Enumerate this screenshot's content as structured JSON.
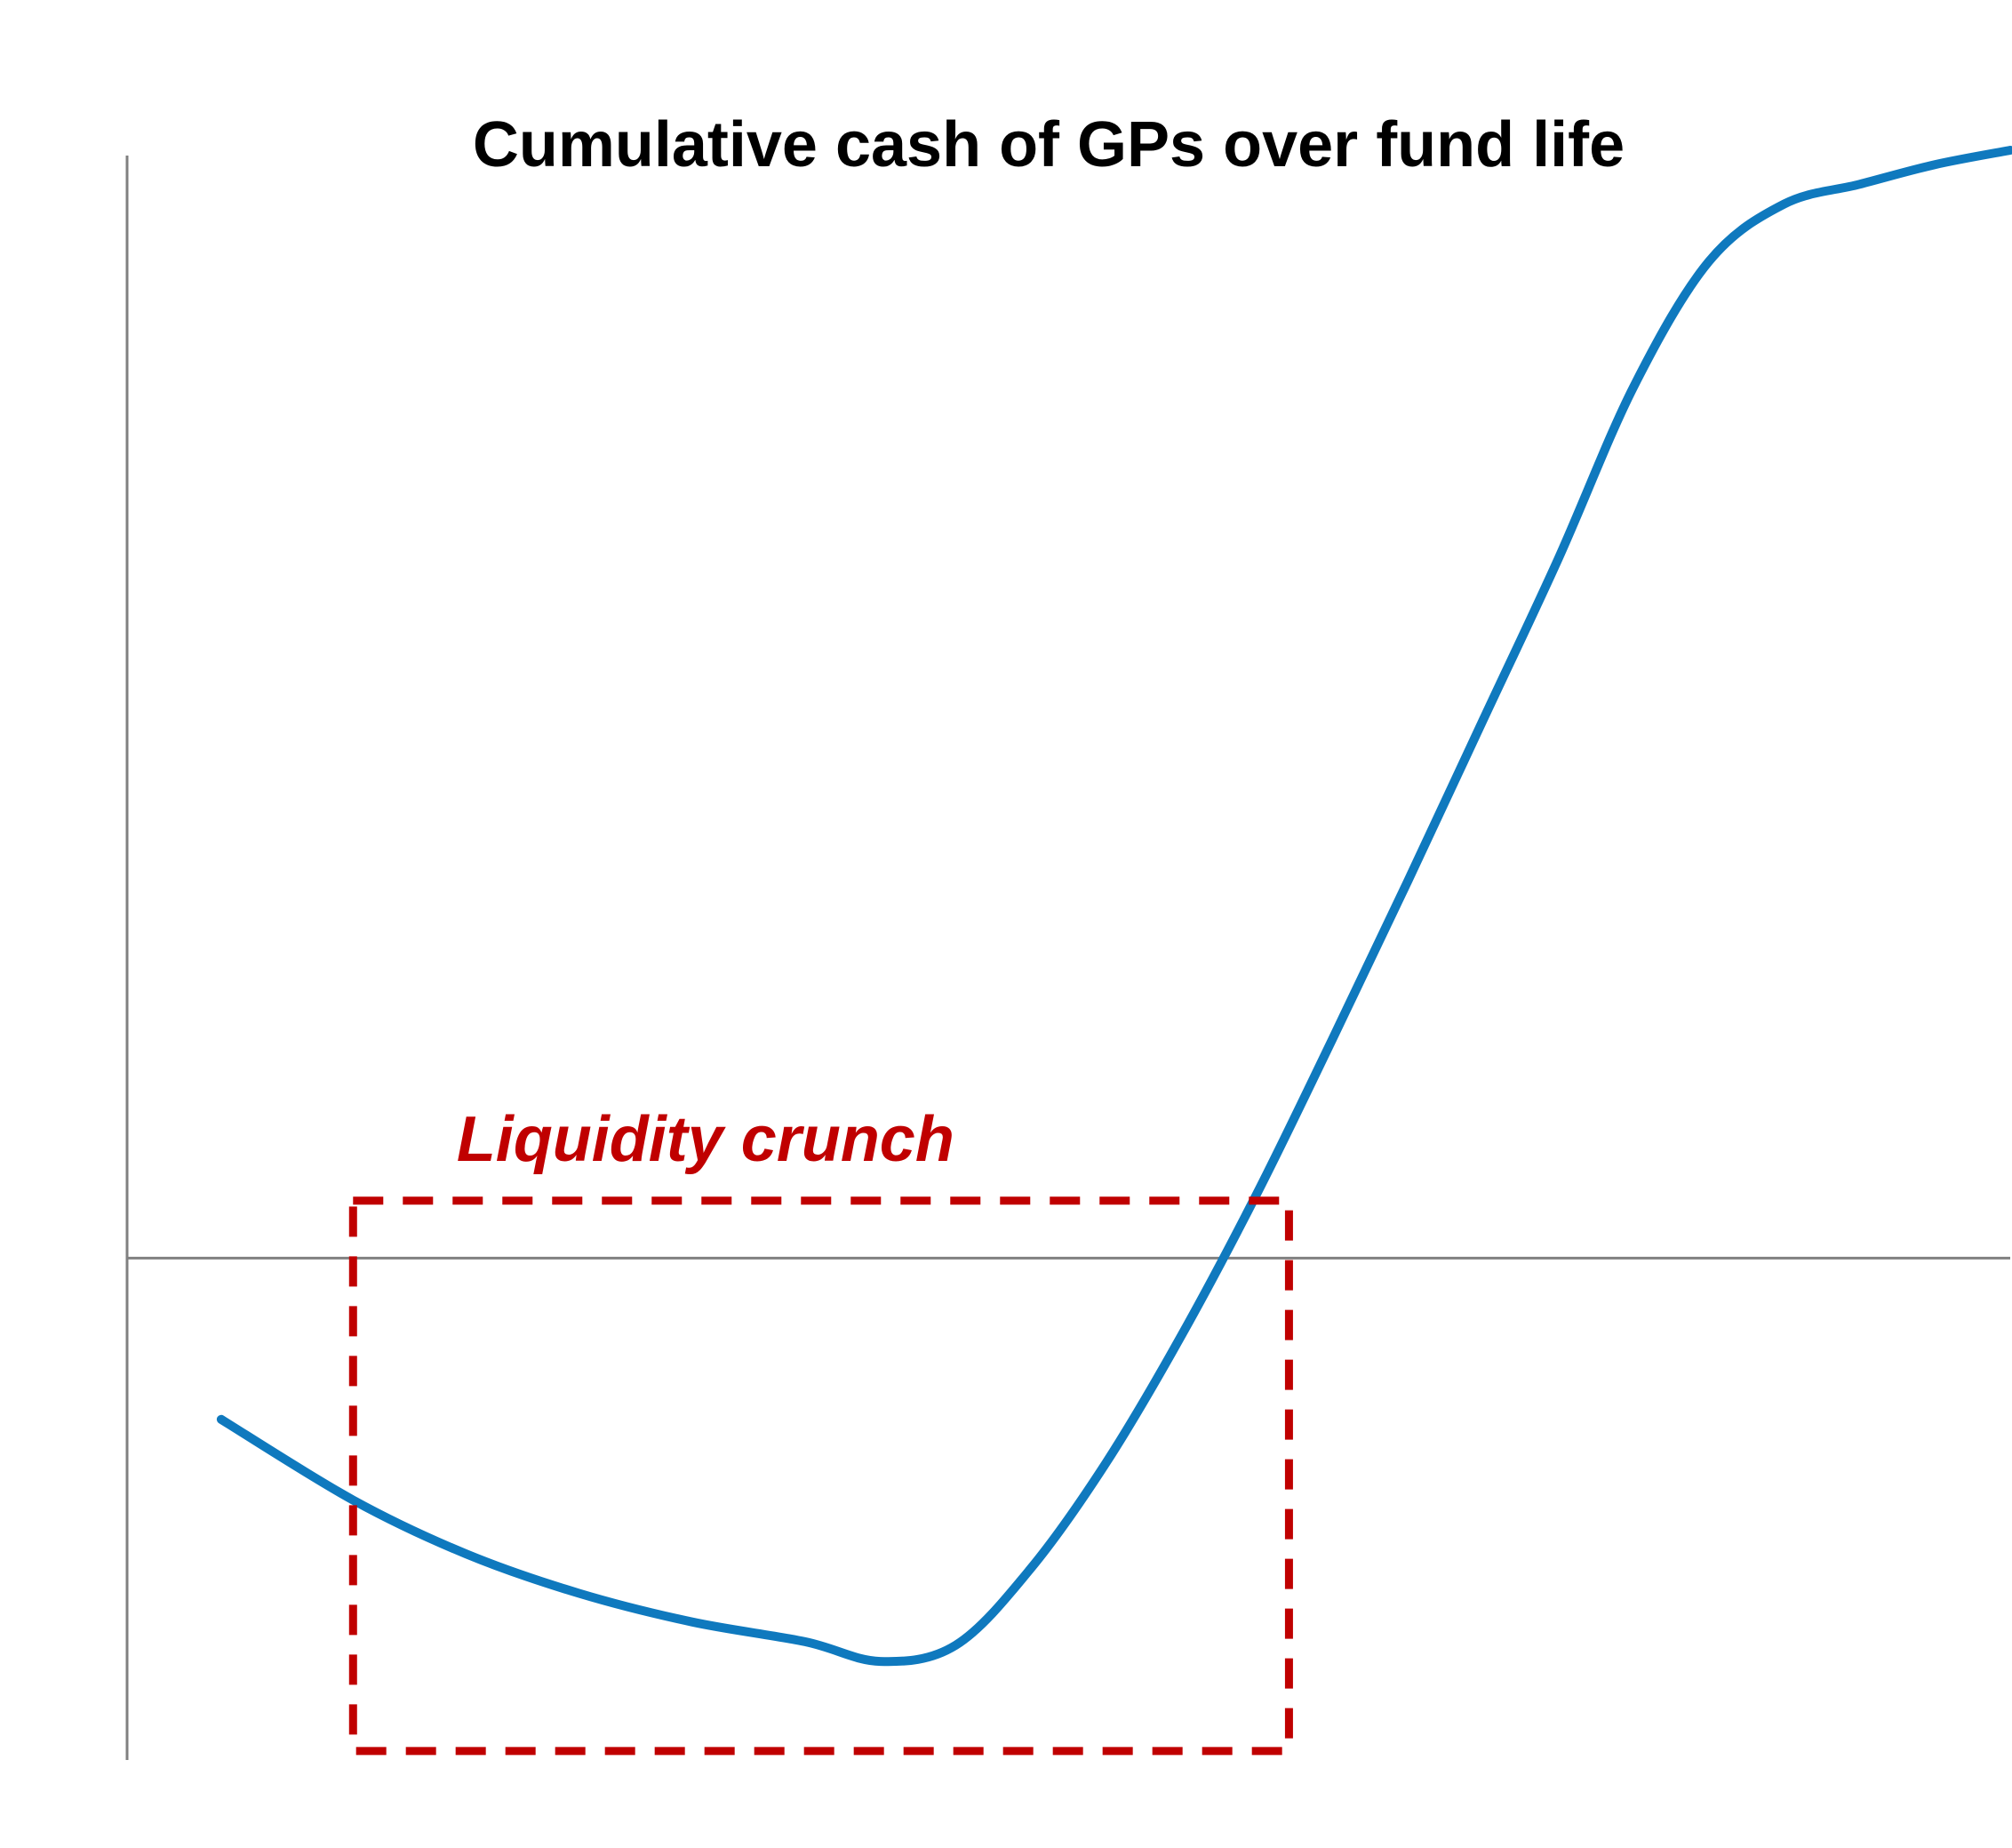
{
  "chart_data": {
    "type": "line",
    "title": "Cumulative cash of GPs over fund life",
    "xlabel": "",
    "ylabel": "",
    "xlim": [
      0,
      100
    ],
    "ylim": [
      -28,
      62
    ],
    "grid": false,
    "legend": "none",
    "axes": {
      "color": "#808080",
      "zero_line": true
    },
    "series": [
      {
        "color": "#0F79BE",
        "x": [
          5,
          12,
          18,
          24,
          30,
          36,
          40,
          44,
          48,
          52,
          56,
          60,
          64,
          68,
          72,
          76,
          80,
          84,
          88,
          92,
          96,
          100
        ],
        "values": [
          -9,
          -13.5,
          -16.5,
          -18.7,
          -20.3,
          -21.4,
          -22.5,
          -21.6,
          -17.3,
          -11.4,
          -4.3,
          3.6,
          12.2,
          21,
          30,
          39,
          48.6,
          55.6,
          58.8,
          59.9,
          61.0,
          61.8
        ]
      }
    ],
    "annotations": [
      {
        "text": "Liquidity crunch",
        "color": "#C00000",
        "style": "dashed-box",
        "x_range": [
          12,
          61.7
        ],
        "y_range": [
          -27.5,
          3.2
        ]
      }
    ]
  }
}
